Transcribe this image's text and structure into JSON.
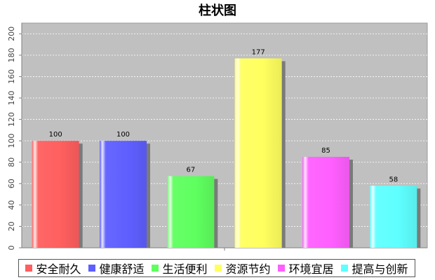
{
  "chart_data": {
    "type": "bar",
    "title": "柱状图",
    "categories": [
      "安全耐久",
      "健康舒适",
      "生活便利",
      "资源节约",
      "环境宜居",
      "提高与创新"
    ],
    "values": [
      100,
      100,
      67,
      177,
      85,
      58
    ],
    "colors": [
      "#ff5f5f",
      "#5f5fff",
      "#5fff5f",
      "#ffff5f",
      "#ff5fff",
      "#5fffff"
    ],
    "ylim": [
      0,
      210
    ],
    "yticks": [
      0,
      20,
      40,
      60,
      80,
      100,
      120,
      140,
      160,
      180,
      200
    ],
    "grid": true,
    "legend_position": "bottom",
    "plot_background": "#c0c0c0"
  }
}
